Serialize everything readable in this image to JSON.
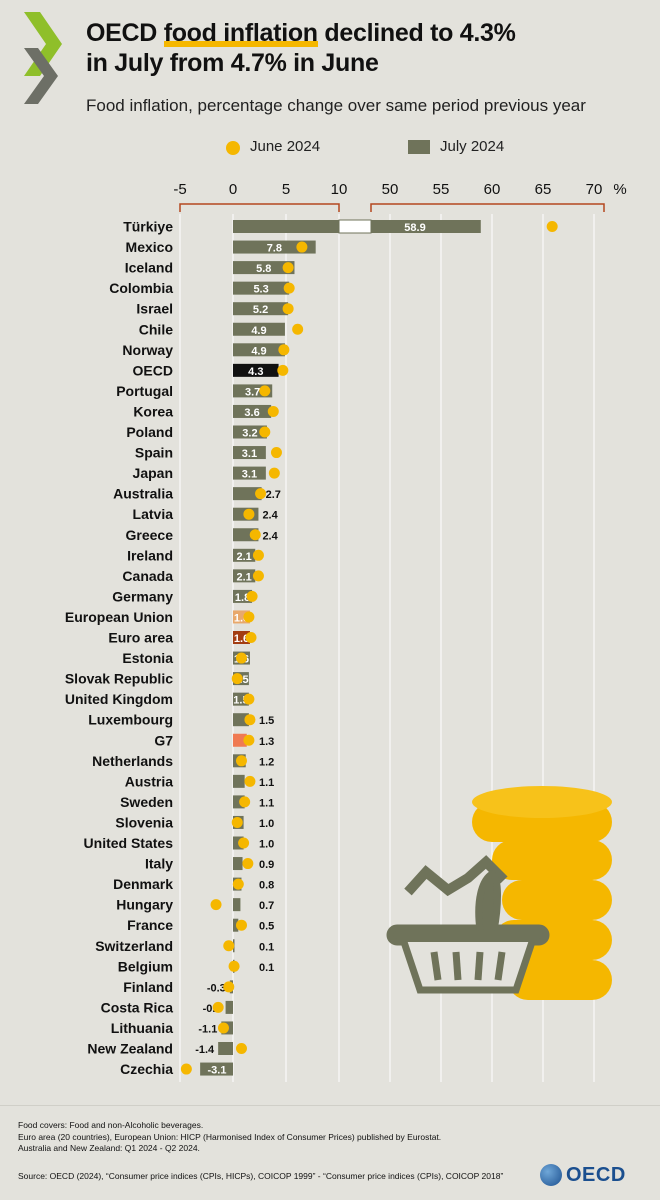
{
  "title_part1": "OECD ",
  "title_highlight": "food inflation",
  "title_part2": " declined to 4.3%",
  "title_line2": "in July from 4.7% in June",
  "subtitle": "Food inflation, percentage change over same period previous year",
  "legend": {
    "june": "June 2024",
    "july": "July 2024"
  },
  "colors": {
    "july": "#6f735a",
    "june": "#f5b700",
    "oecd": "#111111",
    "eu": "#e8a86b",
    "euro_area": "#a33d12",
    "g7": "#f07a52",
    "axis_break": "#b5471f",
    "grid": "#ffffff"
  },
  "chart_data": {
    "type": "bar",
    "orientation": "horizontal",
    "title": "Food inflation, percentage change over same period previous year",
    "unit": "%",
    "x_ticks_left": [
      "-5",
      "0",
      "5",
      "10"
    ],
    "x_ticks_right": [
      "50",
      "55",
      "60",
      "65",
      "70"
    ],
    "x_unit_label": "%",
    "axis_break": {
      "left_range": [
        -5,
        10
      ],
      "right_range": [
        50,
        70
      ]
    },
    "categories": [
      "Türkiye",
      "Mexico",
      "Iceland",
      "Colombia",
      "Israel",
      "Chile",
      "Norway",
      "OECD",
      "Portugal",
      "Korea",
      "Poland",
      "Spain",
      "Japan",
      "Australia",
      "Latvia",
      "Greece",
      "Ireland",
      "Canada",
      "Germany",
      "European Union",
      "Euro area",
      "Estonia",
      "Slovak Republic",
      "United Kingdom",
      "Luxembourg",
      "G7",
      "Netherlands",
      "Austria",
      "Sweden",
      "Slovenia",
      "United States",
      "Italy",
      "Denmark",
      "Hungary",
      "France",
      "Switzerland",
      "Belgium",
      "Finland",
      "Costa Rica",
      "Lithuania",
      "New Zealand",
      "Czechia"
    ],
    "series": [
      {
        "name": "July 2024",
        "values": [
          58.9,
          7.8,
          5.8,
          5.3,
          5.2,
          4.9,
          4.9,
          4.3,
          3.7,
          3.6,
          3.2,
          3.1,
          3.1,
          2.7,
          2.4,
          2.4,
          2.1,
          2.1,
          1.8,
          1.6,
          1.6,
          1.6,
          1.5,
          1.5,
          1.5,
          1.3,
          1.2,
          1.1,
          1.1,
          1.0,
          1.0,
          0.9,
          0.8,
          0.7,
          0.5,
          0.1,
          0.1,
          -0.3,
          -0.7,
          -1.1,
          -1.4,
          -3.1
        ],
        "labels": [
          "58.9",
          "7.8",
          "5.8",
          "5.3",
          "5.2",
          "4.9",
          "4.9",
          "4.3",
          "3.7",
          "3.6",
          "3.2",
          "3.1",
          "3.1",
          "2.7",
          "2.4",
          "2.4",
          "2.1",
          "2.1",
          "1.8",
          "1.6",
          "1.6",
          "1.6",
          "1.5",
          "1.5",
          "1.5",
          "1.3",
          "1.2",
          "1.1",
          "1.1",
          "1.0",
          "1.0",
          "0.9",
          "0.8",
          "0.7",
          "0.5",
          "0.1",
          "0.1",
          "-0.3",
          "-0.7",
          "-1.1",
          "-1.4",
          "-3.1"
        ]
      },
      {
        "name": "June 2024",
        "values": [
          65.9,
          6.5,
          5.2,
          5.3,
          5.2,
          6.1,
          4.8,
          4.7,
          3.0,
          3.8,
          3.0,
          4.1,
          3.9,
          2.6,
          1.5,
          2.1,
          2.4,
          2.4,
          1.8,
          1.5,
          1.7,
          0.8,
          0.4,
          1.5,
          1.6,
          1.5,
          0.8,
          1.6,
          1.1,
          0.4,
          1.0,
          1.4,
          0.5,
          -1.6,
          0.8,
          -0.4,
          0.1,
          -0.4,
          -1.4,
          -0.9,
          0.8,
          -4.4
        ]
      }
    ],
    "highlight": {
      "OECD": "oecd",
      "European Union": "eu",
      "Euro area": "euro_area",
      "G7": "g7"
    }
  },
  "footer": {
    "line1": "Food covers: Food and non-Alcoholic beverages.",
    "line2": "Euro area (20 countries), European Union: HICP (Harmonised Index of Consumer Prices) published by Eurostat.",
    "line3": "Australia and New Zealand: Q1 2024 - Q2 2024.",
    "source": "Source: OECD (2024), “Consumer price indices (CPIs, HICPs), COICOP 1999” - “Consumer price indices (CPIs), COICOP 2018”",
    "logo_text": "OECD"
  }
}
